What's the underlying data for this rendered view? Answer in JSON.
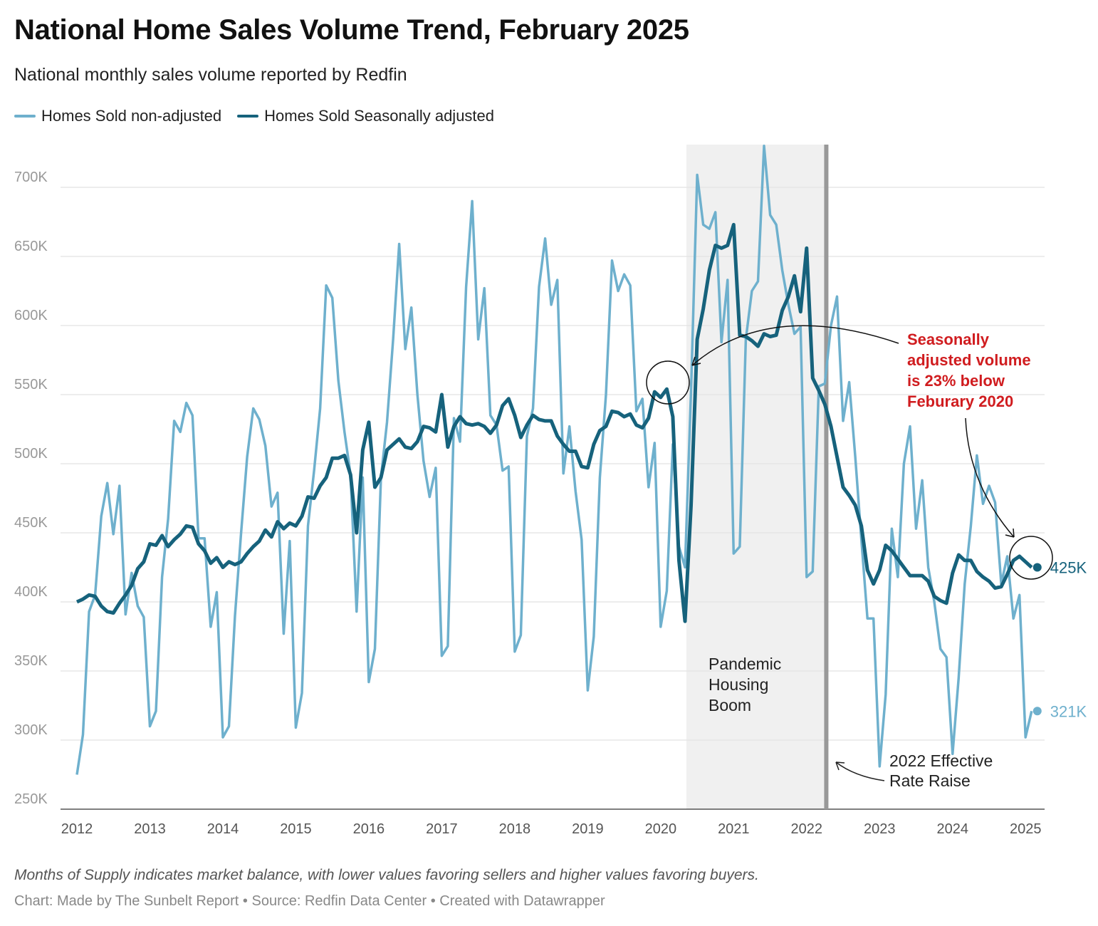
{
  "title": "National Home Sales Volume Trend, February 2025",
  "subtitle": "National monthly sales volume reported by Redfin",
  "footer": {
    "note": "Months of Supply indicates market balance, with lower values favoring sellers and higher values favoring buyers.",
    "source": "Chart: Made by The Sunbelt Report • Source: Redfin Data Center • Created with Datawrapper"
  },
  "colors": {
    "non_adjusted": "#6eb0cd",
    "adjusted": "#16627c",
    "annotation_red": "#d01c1f",
    "shade": "#f0f0f0",
    "rate_line": "#999999"
  },
  "chart_data": {
    "type": "line",
    "title": "National Home Sales Volume Trend, February 2025",
    "xlabel": "",
    "ylabel": "",
    "x_start": "2012-01",
    "x_end": "2025-02",
    "frequency": "monthly",
    "ylim": [
      250,
      730
    ],
    "y_ticks": [
      250,
      300,
      350,
      400,
      450,
      500,
      550,
      600,
      650,
      700
    ],
    "y_tick_labels": [
      "250K",
      "300K",
      "350K",
      "400K",
      "450K",
      "500K",
      "550K",
      "600K",
      "650K",
      "700K"
    ],
    "x_tick_labels": [
      "2012",
      "2013",
      "2014",
      "2015",
      "2016",
      "2017",
      "2018",
      "2019",
      "2020",
      "2021",
      "2022",
      "2023",
      "2024",
      "2025"
    ],
    "grid": true,
    "legend_placement": "top-left",
    "series": [
      {
        "name": "Homes Sold non-adjusted",
        "unit": "K",
        "values": [
          275,
          304,
          393,
          405,
          462,
          486,
          449,
          484,
          391,
          421,
          397,
          389,
          310,
          321,
          418,
          460,
          531,
          523,
          544,
          535,
          446,
          446,
          382,
          407,
          302,
          310,
          390,
          450,
          505,
          540,
          532,
          513,
          469,
          479,
          377,
          444,
          309,
          334,
          455,
          495,
          540,
          629,
          620,
          560,
          523,
          492,
          393,
          490,
          342,
          366,
          490,
          530,
          590,
          659,
          583,
          613,
          550,
          502,
          476,
          497,
          361,
          368,
          533,
          516,
          628,
          690,
          590,
          627,
          535,
          528,
          495,
          498,
          364,
          376,
          520,
          540,
          628,
          663,
          615,
          633,
          493,
          527,
          480,
          445,
          336,
          375,
          490,
          550,
          647,
          625,
          637,
          629,
          538,
          547,
          483,
          515,
          382,
          408,
          514,
          440,
          425,
          553,
          709,
          673,
          670,
          682,
          588,
          633,
          435,
          440,
          590,
          625,
          632,
          730,
          680,
          673,
          640,
          615,
          594,
          599,
          418,
          422,
          556,
          558,
          600,
          621,
          531,
          559,
          505,
          445,
          388,
          388,
          281,
          333,
          453,
          418,
          500,
          527,
          453,
          488,
          425,
          400,
          366,
          360,
          290,
          345,
          413,
          455,
          506,
          471,
          484,
          472,
          413,
          433,
          388,
          405,
          302,
          321
        ]
      },
      {
        "name": "Homes Sold Seasonally adjusted",
        "unit": "K",
        "values": [
          400,
          402,
          405,
          404,
          397,
          393,
          392,
          399,
          405,
          412,
          424,
          429,
          442,
          441,
          448,
          440,
          445,
          449,
          455,
          454,
          442,
          437,
          428,
          432,
          425,
          429,
          427,
          429,
          435,
          440,
          444,
          452,
          447,
          458,
          453,
          457,
          455,
          462,
          476,
          475,
          484,
          490,
          504,
          504,
          506,
          492,
          450,
          510,
          530,
          483,
          490,
          510,
          514,
          518,
          512,
          511,
          516,
          527,
          526,
          523,
          550,
          512,
          527,
          534,
          529,
          528,
          529,
          527,
          522,
          528,
          542,
          547,
          535,
          519,
          528,
          535,
          532,
          531,
          531,
          520,
          514,
          509,
          509,
          498,
          497,
          514,
          524,
          527,
          538,
          537,
          534,
          536,
          528,
          526,
          533,
          552,
          548,
          554,
          534,
          430,
          386,
          470,
          590,
          612,
          640,
          658,
          656,
          658,
          673,
          593,
          592,
          589,
          585,
          594,
          592,
          593,
          611,
          621,
          636,
          610,
          656,
          562,
          553,
          543,
          527,
          505,
          483,
          477,
          470,
          455,
          423,
          413,
          423,
          441,
          437,
          431,
          425,
          419,
          419,
          419,
          415,
          404,
          401,
          399,
          421,
          434,
          430,
          430,
          422,
          418,
          415,
          410,
          411,
          420,
          430,
          433,
          429,
          425
        ]
      }
    ],
    "end_labels": {
      "adjusted": "425K",
      "non_adjusted": "321K"
    },
    "shaded_period": {
      "start": "2020-05",
      "end": "2022-04",
      "label": "Pandemic Housing Boom",
      "label_lines": [
        "Pandemic",
        "Housing",
        "Boom"
      ]
    },
    "vertical_marker": {
      "date": "2022-04",
      "label_lines": [
        "2022 Effective",
        "Rate Raise"
      ]
    },
    "annotation": {
      "lines": [
        "Seasonally",
        "adjusted volume",
        "is 23% below",
        "Feburary 2020"
      ],
      "circled_points": [
        "2020-02",
        "2025-02"
      ]
    }
  }
}
